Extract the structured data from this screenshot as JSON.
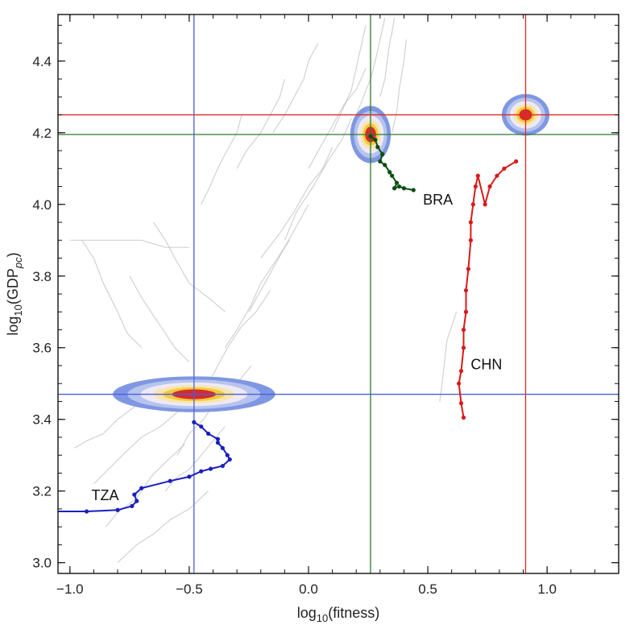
{
  "chart_data": {
    "type": "line",
    "title": "",
    "xlabel": "log10(fitness)",
    "ylabel": "log10(GDPpc)",
    "xlabel_parts": {
      "main": "log",
      "sub": "10",
      "rest": "(fitness)"
    },
    "ylabel_parts": {
      "main": "log",
      "sub": "10",
      "rest": "(GDP",
      "sub2": "pc",
      "end": ")"
    },
    "xlim": [
      -1.05,
      1.3
    ],
    "ylim": [
      2.97,
      4.53
    ],
    "xticks": [
      -1.0,
      -0.5,
      0.0,
      0.5,
      1.0
    ],
    "xtick_labels": [
      "−1.0",
      "−0.5",
      "0.0",
      "0.5",
      "1.0"
    ],
    "yticks": [
      3.0,
      3.2,
      3.4,
      3.6,
      3.8,
      4.0,
      4.2,
      4.4
    ],
    "ytick_labels": [
      "3.0",
      "3.2",
      "3.4",
      "3.6",
      "3.8",
      "4.0",
      "4.2",
      "4.4"
    ],
    "grid": false,
    "colors": {
      "TZA": "#1a1fbf",
      "BRA": "#0b4d12",
      "CHN": "#d71a1a",
      "background_paths": "#b4b4b4"
    },
    "reference_lines": [
      {
        "country": "TZA",
        "x": -0.48,
        "y": 3.47,
        "color": "#4a5ee0"
      },
      {
        "country": "BRA",
        "x": 0.26,
        "y": 4.195,
        "color": "#2e7a2e"
      },
      {
        "country": "CHN",
        "x": 0.91,
        "y": 4.25,
        "color": "#e02828"
      }
    ],
    "density_blobs": [
      {
        "country": "TZA",
        "x": -0.48,
        "y": 3.47,
        "rx": 0.34,
        "ry": 0.05
      },
      {
        "country": "BRA",
        "x": 0.26,
        "y": 4.195,
        "rx": 0.085,
        "ry": 0.08
      },
      {
        "country": "CHN",
        "x": 0.91,
        "y": 4.25,
        "rx": 0.1,
        "ry": 0.058
      }
    ],
    "series": [
      {
        "name": "TZA",
        "label_pos": [
          -0.91,
          3.175
        ],
        "x": [
          -1.1,
          -0.93,
          -0.8,
          -0.74,
          -0.72,
          -0.73,
          -0.7,
          -0.58,
          -0.5,
          -0.45,
          -0.41,
          -0.36,
          -0.33,
          -0.34,
          -0.36,
          -0.38,
          -0.38,
          -0.42,
          -0.45,
          -0.48
        ],
        "y": [
          3.143,
          3.143,
          3.147,
          3.158,
          3.172,
          3.19,
          3.208,
          3.228,
          3.24,
          3.255,
          3.262,
          3.27,
          3.288,
          3.3,
          3.32,
          3.335,
          3.345,
          3.36,
          3.38,
          3.392
        ]
      },
      {
        "name": "BRA",
        "label_pos": [
          0.48,
          4.0
        ],
        "x": [
          0.26,
          0.28,
          0.29,
          0.31,
          0.3,
          0.32,
          0.34,
          0.35,
          0.37,
          0.36,
          0.38,
          0.4,
          0.44
        ],
        "y": [
          4.19,
          4.18,
          4.16,
          4.14,
          4.12,
          4.11,
          4.09,
          4.08,
          4.06,
          4.045,
          4.05,
          4.045,
          4.04
        ]
      },
      {
        "name": "CHN",
        "label_pos": [
          0.68,
          3.54
        ],
        "x": [
          0.65,
          0.64,
          0.63,
          0.64,
          0.65,
          0.65,
          0.66,
          0.66,
          0.67,
          0.68,
          0.68,
          0.69,
          0.7,
          0.71,
          0.74,
          0.76,
          0.79,
          0.82,
          0.87
        ],
        "y": [
          3.405,
          3.445,
          3.5,
          3.535,
          3.6,
          3.65,
          3.7,
          3.76,
          3.82,
          3.9,
          3.95,
          4.0,
          4.05,
          4.08,
          4.0,
          4.05,
          4.08,
          4.1,
          4.12
        ]
      }
    ],
    "background_paths": [
      {
        "x": [
          -0.95,
          -0.9,
          -0.86,
          -0.8,
          -0.76,
          -0.7
        ],
        "y": [
          3.9,
          3.85,
          3.78,
          3.7,
          3.64,
          3.6
        ]
      },
      {
        "x": [
          -0.9,
          -0.84,
          -0.78,
          -0.7,
          -0.62,
          -0.55
        ],
        "y": [
          3.22,
          3.26,
          3.3,
          3.35,
          3.38,
          3.42
        ]
      },
      {
        "x": [
          -0.85,
          -0.8,
          -0.72,
          -0.66,
          -0.6,
          -0.52
        ],
        "y": [
          3.1,
          3.14,
          3.18,
          3.24,
          3.28,
          3.33
        ]
      },
      {
        "x": [
          -0.98,
          -0.93,
          -0.86,
          -0.8,
          -0.72,
          -0.66
        ],
        "y": [
          3.32,
          3.34,
          3.36,
          3.4,
          3.44,
          3.5
        ]
      },
      {
        "x": [
          -0.75,
          -0.7,
          -0.66,
          -0.6,
          -0.56,
          -0.5
        ],
        "y": [
          3.8,
          3.74,
          3.7,
          3.64,
          3.6,
          3.56
        ]
      },
      {
        "x": [
          -0.65,
          -0.6,
          -0.56,
          -0.5,
          -0.42,
          -0.35
        ],
        "y": [
          3.95,
          3.9,
          3.85,
          3.78,
          3.74,
          3.7
        ]
      },
      {
        "x": [
          -0.55,
          -0.5,
          -0.44,
          -0.38,
          -0.3,
          -0.24
        ],
        "y": [
          3.3,
          3.36,
          3.4,
          3.46,
          3.5,
          3.55
        ]
      },
      {
        "x": [
          -0.42,
          -0.38,
          -0.34,
          -0.28,
          -0.22,
          -0.16
        ],
        "y": [
          3.5,
          3.55,
          3.6,
          3.66,
          3.7,
          3.76
        ]
      },
      {
        "x": [
          -0.35,
          -0.3,
          -0.24,
          -0.2,
          -0.14,
          -0.08
        ],
        "y": [
          3.6,
          3.65,
          3.72,
          3.78,
          3.84,
          3.9
        ]
      },
      {
        "x": [
          -0.25,
          -0.2,
          -0.15,
          -0.1,
          -0.05,
          0.0
        ],
        "y": [
          3.7,
          3.76,
          3.82,
          3.88,
          3.94,
          4.0
        ]
      },
      {
        "x": [
          -0.2,
          -0.12,
          -0.06,
          0.0,
          0.06,
          0.1
        ],
        "y": [
          3.85,
          3.92,
          3.98,
          4.05,
          4.1,
          4.16
        ]
      },
      {
        "x": [
          -0.1,
          -0.05,
          0.02,
          0.08,
          0.14,
          0.18
        ],
        "y": [
          3.9,
          3.98,
          4.05,
          4.12,
          4.18,
          4.24
        ]
      },
      {
        "x": [
          0.0,
          0.05,
          0.1,
          0.15,
          0.2,
          0.24
        ],
        "y": [
          4.1,
          4.16,
          4.22,
          4.28,
          4.32,
          4.38
        ]
      },
      {
        "x": [
          0.1,
          0.14,
          0.18,
          0.2,
          0.22,
          0.24
        ],
        "y": [
          4.2,
          4.26,
          4.32,
          4.38,
          4.44,
          4.5
        ]
      },
      {
        "x": [
          0.2,
          0.23,
          0.26,
          0.28,
          0.3,
          0.32
        ],
        "y": [
          4.25,
          4.3,
          4.35,
          4.4,
          4.46,
          4.52
        ]
      },
      {
        "x": [
          0.3,
          0.32,
          0.33,
          0.34,
          0.35,
          0.36
        ],
        "y": [
          4.3,
          4.35,
          4.4,
          4.45,
          4.48,
          4.52
        ]
      },
      {
        "x": [
          0.35,
          0.37,
          0.38,
          0.39,
          0.4,
          0.41
        ],
        "y": [
          4.2,
          4.26,
          4.32,
          4.36,
          4.4,
          4.46
        ]
      },
      {
        "x": [
          0.55,
          0.56,
          0.57,
          0.58,
          0.6,
          0.62
        ],
        "y": [
          3.45,
          3.5,
          3.56,
          3.62,
          3.66,
          3.7
        ]
      },
      {
        "x": [
          -1.0,
          -0.9,
          -0.8,
          -0.7,
          -0.6,
          -0.5
        ],
        "y": [
          3.9,
          3.9,
          3.9,
          3.9,
          3.88,
          3.88
        ]
      },
      {
        "x": [
          -0.8,
          -0.72,
          -0.65,
          -0.58,
          -0.5,
          -0.42
        ],
        "y": [
          3.0,
          3.05,
          3.08,
          3.12,
          3.15,
          3.2
        ]
      },
      {
        "x": [
          -0.6,
          -0.55,
          -0.5,
          -0.45,
          -0.4,
          -0.35
        ],
        "y": [
          3.2,
          3.24,
          3.26,
          3.3,
          3.34,
          3.38
        ]
      },
      {
        "x": [
          -0.45,
          -0.42,
          -0.38,
          -0.35,
          -0.3,
          -0.28
        ],
        "y": [
          4.0,
          4.04,
          4.1,
          4.14,
          4.2,
          4.25
        ]
      },
      {
        "x": [
          -0.3,
          -0.26,
          -0.2,
          -0.16,
          -0.12,
          -0.1
        ],
        "y": [
          4.1,
          4.15,
          4.2,
          4.25,
          4.3,
          4.35
        ]
      },
      {
        "x": [
          -0.15,
          -0.1,
          -0.06,
          -0.02,
          0.0,
          0.04
        ],
        "y": [
          4.2,
          4.25,
          4.3,
          4.35,
          4.4,
          4.45
        ]
      }
    ]
  }
}
